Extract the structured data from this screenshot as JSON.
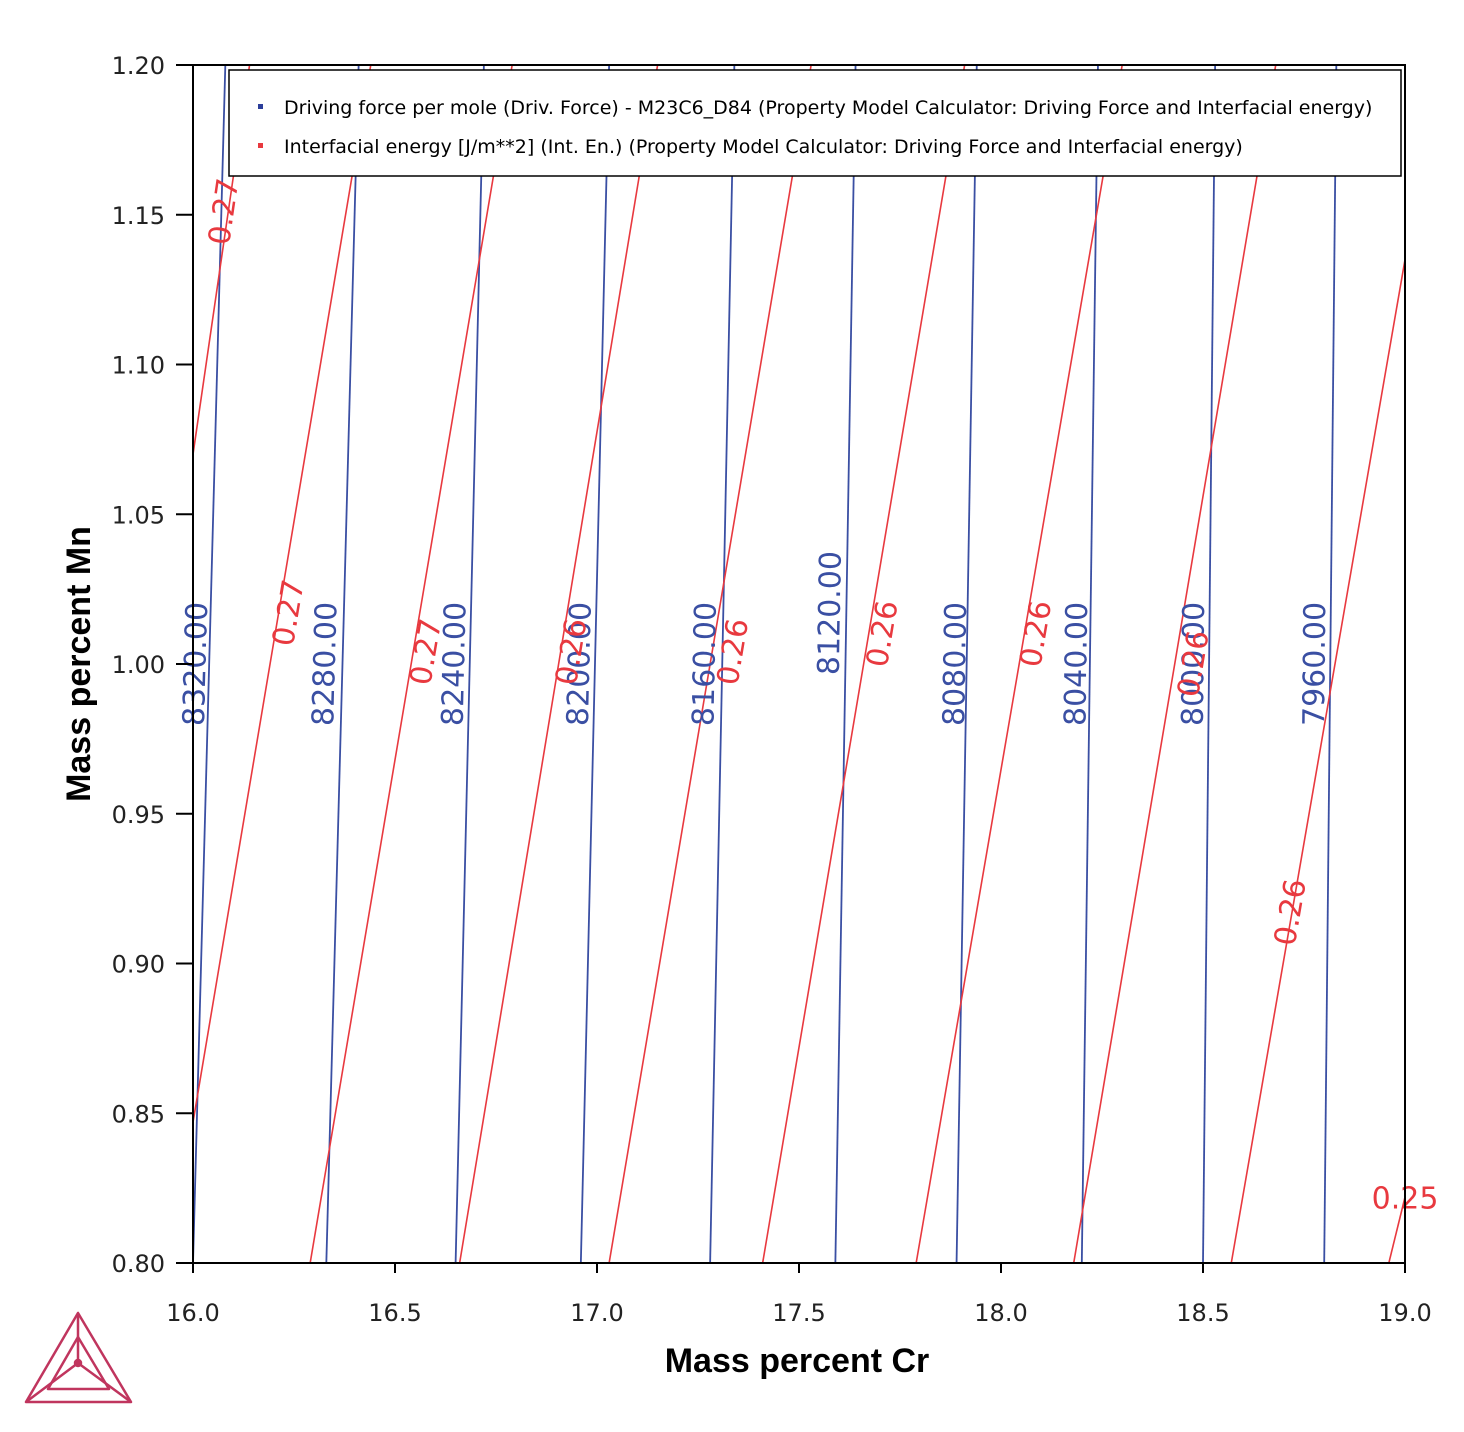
{
  "chart_data": {
    "type": "line",
    "subtype": "contour",
    "xlabel": "Mass percent Cr",
    "ylabel": "Mass percent Mn",
    "xlim": [
      16.0,
      19.0
    ],
    "ylim": [
      0.8,
      1.2
    ],
    "xticks": [
      "16.0",
      "16.5",
      "17.0",
      "17.5",
      "18.0",
      "18.5",
      "19.0"
    ],
    "yticks": [
      "0.80",
      "0.85",
      "0.90",
      "0.95",
      "1.00",
      "1.05",
      "1.10",
      "1.15",
      "1.20"
    ],
    "grid": false,
    "legend_position": "top",
    "series": [
      {
        "name": "Driving force per mole (Driv. Force) - M23C6_D84 (Property Model Calculator: Driving Force and Interfacial energy)",
        "color": "#3a4fa3",
        "contours": [
          {
            "level": 8320,
            "label": "8320.00",
            "points": [
              [
                16.0,
                0.8
              ],
              [
                16.08,
                1.2
              ]
            ],
            "label_at": [
              16.01,
              1.0
            ]
          },
          {
            "level": 8280,
            "label": "8280.00",
            "points": [
              [
                16.33,
                0.8
              ],
              [
                16.41,
                1.2
              ]
            ],
            "label_at": [
              16.33,
              1.0
            ]
          },
          {
            "level": 8240,
            "label": "8240.00",
            "points": [
              [
                16.65,
                0.8
              ],
              [
                16.72,
                1.2
              ]
            ],
            "label_at": [
              16.65,
              1.0
            ]
          },
          {
            "level": 8200,
            "label": "8200.00",
            "points": [
              [
                16.96,
                0.8
              ],
              [
                17.03,
                1.2
              ]
            ],
            "label_at": [
              16.96,
              1.0
            ]
          },
          {
            "level": 8160,
            "label": "8160.00",
            "points": [
              [
                17.28,
                0.8
              ],
              [
                17.34,
                1.2
              ]
            ],
            "label_at": [
              17.27,
              1.0
            ]
          },
          {
            "level": 8120,
            "label": "8120.00",
            "points": [
              [
                17.59,
                0.8
              ],
              [
                17.64,
                1.2
              ]
            ],
            "label_at": [
              17.58,
              1.017
            ]
          },
          {
            "level": 8080,
            "label": "8080.00",
            "points": [
              [
                17.89,
                0.8
              ],
              [
                17.94,
                1.2
              ]
            ],
            "label_at": [
              17.89,
              1.0
            ]
          },
          {
            "level": 8040,
            "label": "8040.00",
            "points": [
              [
                18.2,
                0.8
              ],
              [
                18.24,
                1.2
              ]
            ],
            "label_at": [
              18.19,
              1.0
            ]
          },
          {
            "level": 8000,
            "label": "8000.00",
            "points": [
              [
                18.5,
                0.8
              ],
              [
                18.53,
                1.2
              ]
            ],
            "label_at": [
              18.48,
              1.0
            ]
          },
          {
            "level": 7960,
            "label": "7960.00",
            "points": [
              [
                18.8,
                0.8
              ],
              [
                18.83,
                1.2
              ]
            ],
            "label_at": [
              18.78,
              1.0
            ]
          }
        ]
      },
      {
        "name": "Interfacial energy [J/m**2] (Int. En.) (Property Model Calculator: Driving Force and Interfacial energy)",
        "color": "#e8393f",
        "contours": [
          {
            "level": 0.27,
            "label": "0.27",
            "points": [
              [
                16.0,
                1.07
              ],
              [
                16.14,
                1.2
              ]
            ],
            "label_at": [
              16.08,
              1.151
            ]
          },
          {
            "level": 0.27,
            "label": "0.27",
            "points": [
              [
                16.0,
                0.847
              ],
              [
                16.44,
                1.2
              ]
            ],
            "label_at": [
              16.24,
              1.017
            ]
          },
          {
            "level": 0.27,
            "label": "0.27",
            "points": [
              [
                16.29,
                0.8
              ],
              [
                16.79,
                1.2
              ]
            ],
            "label_at": [
              16.58,
              1.004
            ]
          },
          {
            "level": 0.26,
            "label": "0.26",
            "points": [
              [
                16.66,
                0.8
              ],
              [
                17.15,
                1.2
              ]
            ],
            "label_at": [
              16.94,
              1.004
            ]
          },
          {
            "level": 0.26,
            "label": "0.26",
            "points": [
              [
                17.03,
                0.8
              ],
              [
                17.53,
                1.2
              ]
            ],
            "label_at": [
              17.34,
              1.004
            ]
          },
          {
            "level": 0.26,
            "label": "0.26",
            "points": [
              [
                17.41,
                0.8
              ],
              [
                17.91,
                1.2
              ]
            ],
            "label_at": [
              17.71,
              1.01
            ]
          },
          {
            "level": 0.26,
            "label": "0.26",
            "points": [
              [
                17.79,
                0.8
              ],
              [
                18.3,
                1.2
              ]
            ],
            "label_at": [
              18.09,
              1.01
            ]
          },
          {
            "level": 0.26,
            "label": "0.26",
            "points": [
              [
                18.18,
                0.8
              ],
              [
                18.68,
                1.2
              ]
            ],
            "label_at": [
              18.48,
              1.0
            ]
          },
          {
            "level": 0.26,
            "label": "0.26",
            "points": [
              [
                18.57,
                0.8
              ],
              [
                19.0,
                1.135
              ]
            ],
            "label_at": [
              18.72,
              0.917
            ]
          },
          {
            "level": 0.25,
            "label": "0.25",
            "points": [
              [
                18.96,
                0.8
              ],
              [
                19.0,
                0.822
              ]
            ],
            "label_at": [
              19.0,
              0.821
            ]
          }
        ]
      }
    ]
  }
}
